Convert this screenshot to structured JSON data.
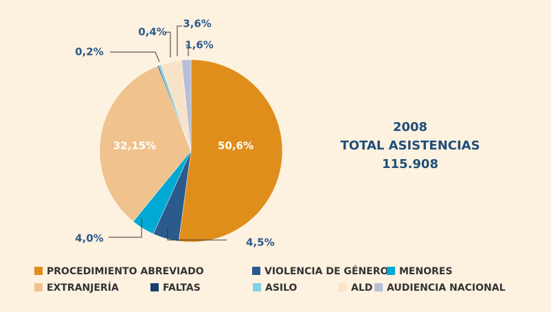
{
  "chart_data": {
    "type": "pie",
    "title": [
      "2008",
      "TOTAL ASISTENCIAS",
      "115.908"
    ],
    "categories": [
      "PROCEDIMIENTO ABREVIADO",
      "VIOLENCIA DE GÉNERO",
      "MENORES",
      "EXTRANJERÍA",
      "FALTAS",
      "ASILO",
      "ALD",
      "AUDIENCIA NACIONAL"
    ],
    "values": [
      50.6,
      4.5,
      4.0,
      32.15,
      0.2,
      0.4,
      3.6,
      1.6
    ],
    "value_labels": [
      "50,6%",
      "4,5%",
      "4,0%",
      "32,15%",
      "0,2%",
      "0,4%",
      "3,6%",
      "1,6%"
    ],
    "colors": [
      "#e08e1b",
      "#2a5b8c",
      "#00a9d4",
      "#f0c38e",
      "#1a3e6b",
      "#7fd0e8",
      "#f9e3c8",
      "#b6bed8"
    ],
    "legend": "bottom"
  }
}
